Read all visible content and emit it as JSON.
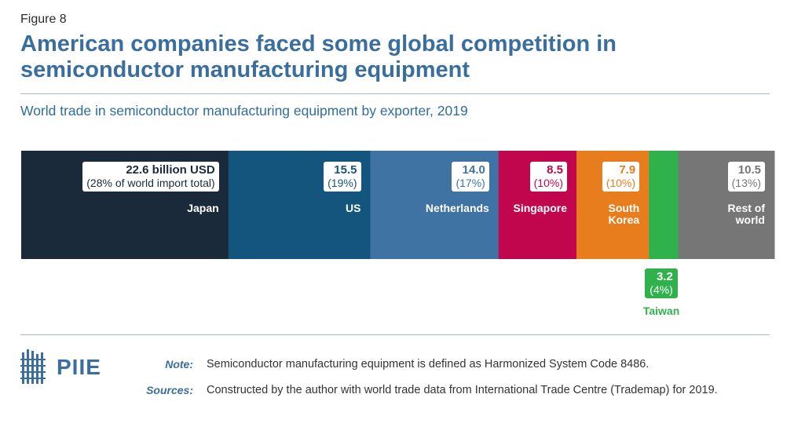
{
  "figure_label": "Figure 8",
  "title": "American companies faced some global competition in semiconductor manufacturing equipment",
  "subtitle": "World trade in semiconductor manufacturing equipment by exporter, 2019",
  "chart_data": {
    "type": "bar",
    "orientation": "horizontal-stacked",
    "title": "American companies faced some global competition in semiconductor manufacturing equipment",
    "subtitle": "World trade in semiconductor manufacturing equipment by exporter, 2019",
    "units": "billion USD",
    "categories": [
      "Japan",
      "US",
      "Netherlands",
      "Singapore",
      "South Korea",
      "Taiwan",
      "Rest of world"
    ],
    "values": [
      22.6,
      15.5,
      14.0,
      8.5,
      7.9,
      3.2,
      10.5
    ],
    "shares": [
      "28",
      "19",
      "17",
      "10",
      "10",
      "4",
      "13"
    ],
    "value_labels": [
      "22.6 billion USD",
      "15.5",
      "14.0",
      "8.5",
      "7.9",
      "3.2",
      "10.5"
    ],
    "share_labels": [
      "(28% of world import total)",
      "(19%)",
      "(17%)",
      "(10%)",
      "(10%)",
      "(4%)",
      "(13%)"
    ],
    "name_lines": [
      [
        "Japan"
      ],
      [
        "US"
      ],
      [
        "Netherlands"
      ],
      [
        "Singapore"
      ],
      [
        "South",
        "Korea"
      ],
      [
        "Taiwan"
      ],
      [
        "Rest of",
        "world"
      ]
    ],
    "colors": [
      "#1b2a3a",
      "#14557d",
      "#3f73a3",
      "#c2064e",
      "#e87d1e",
      "#2fb24c",
      "#767676"
    ],
    "text_colors": [
      "#1b2a3a",
      "#14557d",
      "#3f73a3",
      "#c2064e",
      "#e87d1e",
      "#ffffff",
      "#767676"
    ]
  },
  "logo": {
    "text": "PIIE",
    "icon": "building-grid-icon"
  },
  "note": {
    "label": "Note:",
    "text": "Semiconductor manufacturing equipment is defined as Harmonized System Code 8486."
  },
  "sources": {
    "label": "Sources:",
    "text": "Constructed by the author with world trade data from International Trade Centre (Trademap) for 2019."
  }
}
